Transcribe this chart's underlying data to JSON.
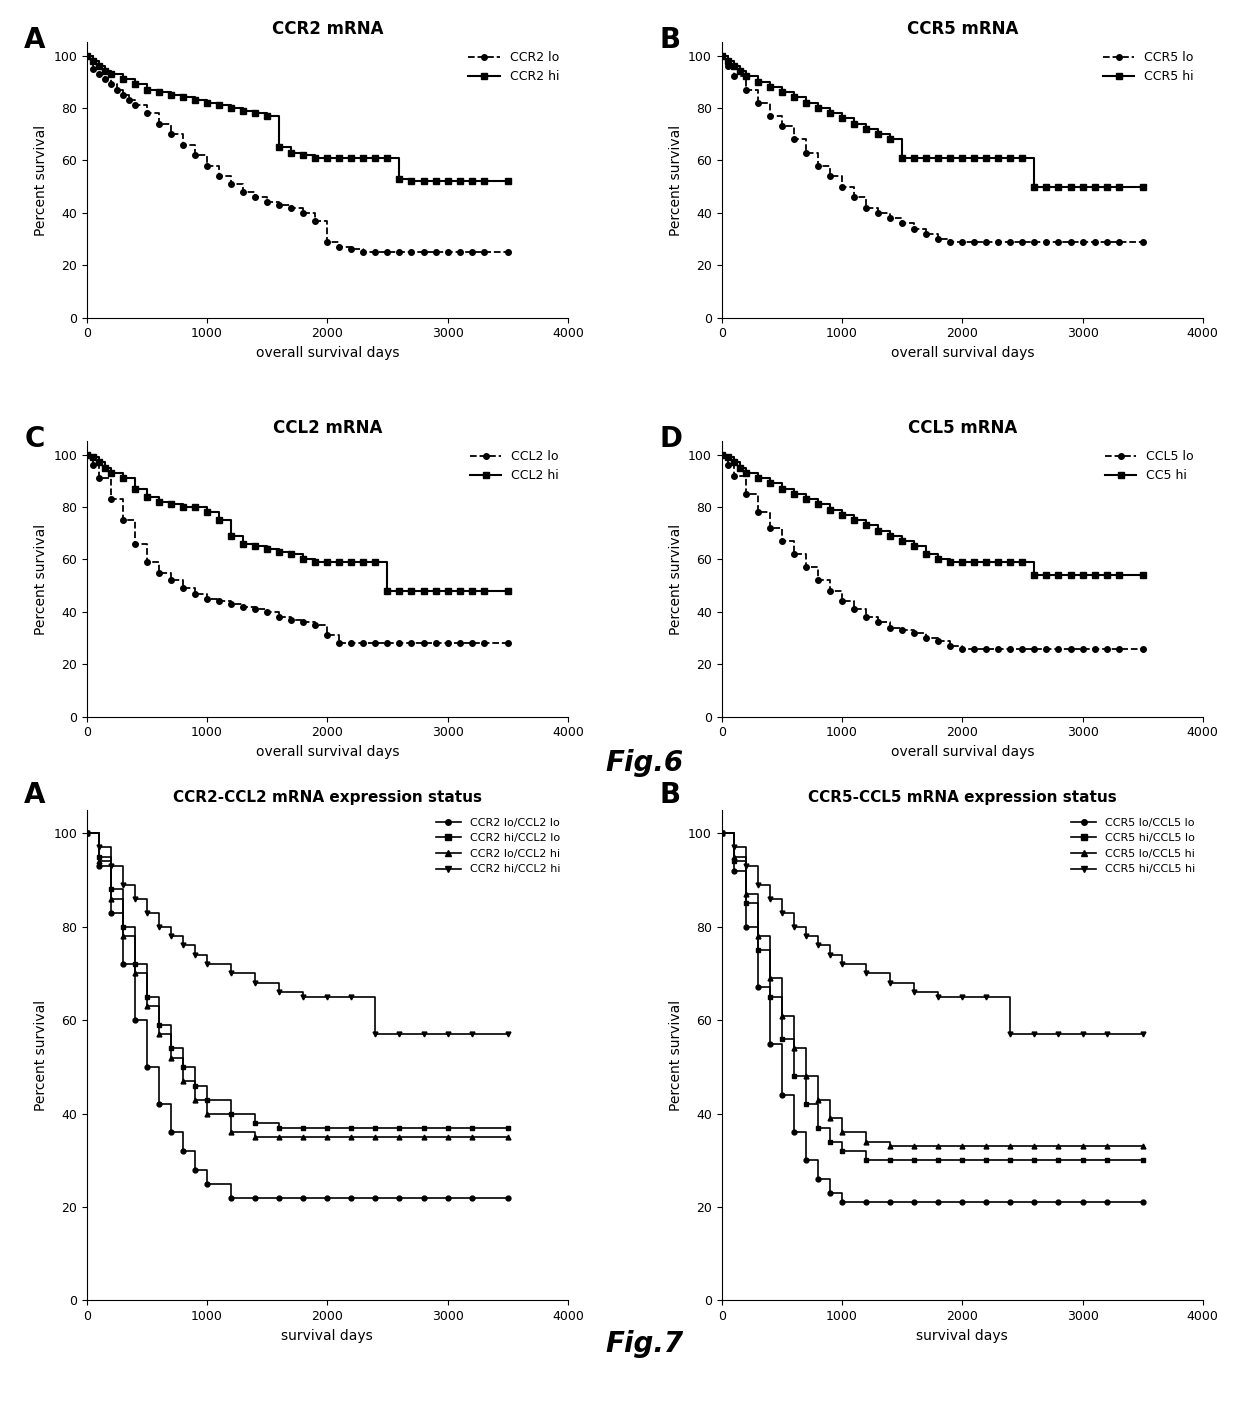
{
  "fig6_title": "Fig.6",
  "fig7_title": "Fig.7",
  "panels": {
    "A": {
      "title": "CCR2 mRNA",
      "label": "A",
      "xlabel": "overall survival days",
      "ylabel": "Percent survival",
      "xlim": [
        0,
        4000
      ],
      "ylim": [
        0,
        105
      ],
      "yticks": [
        0,
        20,
        40,
        60,
        80,
        100
      ],
      "xticks": [
        0,
        1000,
        2000,
        3000,
        4000
      ],
      "lo_label": "CCR2 lo",
      "hi_label": "CCR2 hi",
      "lo_x": [
        0,
        50,
        100,
        150,
        200,
        250,
        300,
        350,
        400,
        500,
        600,
        700,
        800,
        900,
        1000,
        1100,
        1200,
        1300,
        1400,
        1500,
        1600,
        1700,
        1800,
        1900,
        2000,
        2100,
        2200,
        2300,
        2400,
        2500,
        2600,
        2700,
        2800,
        2900,
        3000,
        3100,
        3200,
        3300,
        3500
      ],
      "lo_y": [
        100,
        95,
        93,
        91,
        89,
        87,
        85,
        83,
        81,
        78,
        74,
        70,
        66,
        62,
        58,
        54,
        51,
        48,
        46,
        44,
        43,
        42,
        40,
        37,
        29,
        27,
        26,
        25,
        25,
        25,
        25,
        25,
        25,
        25,
        25,
        25,
        25,
        25,
        25
      ],
      "hi_x": [
        0,
        50,
        100,
        150,
        200,
        300,
        400,
        500,
        600,
        700,
        800,
        900,
        1000,
        1100,
        1200,
        1300,
        1400,
        1500,
        1600,
        1700,
        1800,
        1900,
        2000,
        2100,
        2200,
        2300,
        2400,
        2500,
        2600,
        2700,
        2800,
        2900,
        3000,
        3100,
        3200,
        3300,
        3500
      ],
      "hi_y": [
        100,
        98,
        96,
        94,
        93,
        91,
        89,
        87,
        86,
        85,
        84,
        83,
        82,
        81,
        80,
        79,
        78,
        77,
        65,
        63,
        62,
        61,
        61,
        61,
        61,
        61,
        61,
        61,
        53,
        52,
        52,
        52,
        52,
        52,
        52,
        52,
        52
      ]
    },
    "B": {
      "title": "CCR5 mRNA",
      "label": "B",
      "xlabel": "overall survival days",
      "ylabel": "Percent survival",
      "xlim": [
        0,
        4000
      ],
      "ylim": [
        0,
        105
      ],
      "yticks": [
        0,
        20,
        40,
        60,
        80,
        100
      ],
      "xticks": [
        0,
        1000,
        2000,
        3000,
        4000
      ],
      "lo_label": "CCR5 lo",
      "hi_label": "CCR5 hi",
      "lo_x": [
        0,
        50,
        100,
        200,
        300,
        400,
        500,
        600,
        700,
        800,
        900,
        1000,
        1100,
        1200,
        1300,
        1400,
        1500,
        1600,
        1700,
        1800,
        1900,
        2000,
        2100,
        2200,
        2300,
        2400,
        2500,
        2600,
        2700,
        2800,
        2900,
        3000,
        3100,
        3200,
        3300,
        3500
      ],
      "lo_y": [
        100,
        96,
        92,
        87,
        82,
        77,
        73,
        68,
        63,
        58,
        54,
        50,
        46,
        42,
        40,
        38,
        36,
        34,
        32,
        30,
        29,
        29,
        29,
        29,
        29,
        29,
        29,
        29,
        29,
        29,
        29,
        29,
        29,
        29,
        29,
        29
      ],
      "hi_x": [
        0,
        50,
        100,
        150,
        200,
        300,
        400,
        500,
        600,
        700,
        800,
        900,
        1000,
        1100,
        1200,
        1300,
        1400,
        1500,
        1600,
        1700,
        1800,
        1900,
        2000,
        2100,
        2200,
        2300,
        2400,
        2500,
        2600,
        2700,
        2800,
        2900,
        3000,
        3100,
        3200,
        3300,
        3500
      ],
      "hi_y": [
        100,
        98,
        96,
        94,
        92,
        90,
        88,
        86,
        84,
        82,
        80,
        78,
        76,
        74,
        72,
        70,
        68,
        61,
        61,
        61,
        61,
        61,
        61,
        61,
        61,
        61,
        61,
        61,
        50,
        50,
        50,
        50,
        50,
        50,
        50,
        50,
        50
      ]
    },
    "C": {
      "title": "CCL2 mRNA",
      "label": "C",
      "xlabel": "overall survival days",
      "ylabel": "Percent survival",
      "xlim": [
        0,
        4000
      ],
      "ylim": [
        0,
        105
      ],
      "yticks": [
        0,
        20,
        40,
        60,
        80,
        100
      ],
      "xticks": [
        0,
        1000,
        2000,
        3000,
        4000
      ],
      "lo_label": "CCL2 lo",
      "hi_label": "CCL2 hi",
      "lo_x": [
        0,
        50,
        100,
        200,
        300,
        400,
        500,
        600,
        700,
        800,
        900,
        1000,
        1100,
        1200,
        1300,
        1400,
        1500,
        1600,
        1700,
        1800,
        1900,
        2000,
        2100,
        2200,
        2300,
        2400,
        2500,
        2600,
        2700,
        2800,
        2900,
        3000,
        3100,
        3200,
        3300,
        3500
      ],
      "lo_y": [
        100,
        96,
        91,
        83,
        75,
        66,
        59,
        55,
        52,
        49,
        47,
        45,
        44,
        43,
        42,
        41,
        40,
        38,
        37,
        36,
        35,
        31,
        28,
        28,
        28,
        28,
        28,
        28,
        28,
        28,
        28,
        28,
        28,
        28,
        28,
        28
      ],
      "hi_x": [
        0,
        50,
        100,
        150,
        200,
        300,
        400,
        500,
        600,
        700,
        800,
        900,
        1000,
        1100,
        1200,
        1300,
        1400,
        1500,
        1600,
        1700,
        1800,
        1900,
        2000,
        2100,
        2200,
        2300,
        2400,
        2500,
        2600,
        2700,
        2800,
        2900,
        3000,
        3100,
        3200,
        3300,
        3500
      ],
      "hi_y": [
        100,
        99,
        97,
        95,
        93,
        91,
        87,
        84,
        82,
        81,
        80,
        80,
        78,
        75,
        69,
        66,
        65,
        64,
        63,
        62,
        60,
        59,
        59,
        59,
        59,
        59,
        59,
        48,
        48,
        48,
        48,
        48,
        48,
        48,
        48,
        48,
        48
      ]
    },
    "D": {
      "title": "CCL5 mRNA",
      "label": "D",
      "xlabel": "overall survival days",
      "ylabel": "Percent survival",
      "xlim": [
        0,
        4000
      ],
      "ylim": [
        0,
        105
      ],
      "yticks": [
        0,
        20,
        40,
        60,
        80,
        100
      ],
      "xticks": [
        0,
        1000,
        2000,
        3000,
        4000
      ],
      "lo_label": "CCL5 lo",
      "hi_label": "CC5 hi",
      "lo_x": [
        0,
        50,
        100,
        200,
        300,
        400,
        500,
        600,
        700,
        800,
        900,
        1000,
        1100,
        1200,
        1300,
        1400,
        1500,
        1600,
        1700,
        1800,
        1900,
        2000,
        2100,
        2200,
        2300,
        2400,
        2500,
        2600,
        2700,
        2800,
        2900,
        3000,
        3100,
        3200,
        3300,
        3500
      ],
      "lo_y": [
        100,
        96,
        92,
        85,
        78,
        72,
        67,
        62,
        57,
        52,
        48,
        44,
        41,
        38,
        36,
        34,
        33,
        32,
        30,
        29,
        27,
        26,
        26,
        26,
        26,
        26,
        26,
        26,
        26,
        26,
        26,
        26,
        26,
        26,
        26,
        26
      ],
      "hi_x": [
        0,
        50,
        100,
        150,
        200,
        300,
        400,
        500,
        600,
        700,
        800,
        900,
        1000,
        1100,
        1200,
        1300,
        1400,
        1500,
        1600,
        1700,
        1800,
        1900,
        2000,
        2100,
        2200,
        2300,
        2400,
        2500,
        2600,
        2700,
        2800,
        2900,
        3000,
        3100,
        3200,
        3300,
        3500
      ],
      "hi_y": [
        100,
        99,
        97,
        95,
        93,
        91,
        89,
        87,
        85,
        83,
        81,
        79,
        77,
        75,
        73,
        71,
        69,
        67,
        65,
        62,
        60,
        59,
        59,
        59,
        59,
        59,
        59,
        59,
        54,
        54,
        54,
        54,
        54,
        54,
        54,
        54,
        54
      ]
    }
  },
  "fig7": {
    "A": {
      "title": "CCR2-CCL2 mRNA expression status",
      "label": "A",
      "xlabel": "survival days",
      "ylabel": "Percent survival",
      "xlim": [
        0,
        4000
      ],
      "ylim": [
        0,
        105
      ],
      "yticks": [
        0,
        20,
        40,
        60,
        80,
        100
      ],
      "xticks": [
        0,
        1000,
        2000,
        3000,
        4000
      ],
      "series": [
        {
          "label": "CCR2 lo/CCL2 lo",
          "marker": "o",
          "x": [
            0,
            100,
            200,
            300,
            400,
            500,
            600,
            700,
            800,
            900,
            1000,
            1200,
            1400,
            1600,
            1800,
            2000,
            2200,
            2400,
            2600,
            2800,
            3000,
            3200,
            3500
          ],
          "y": [
            100,
            93,
            83,
            72,
            60,
            50,
            42,
            36,
            32,
            28,
            25,
            22,
            22,
            22,
            22,
            22,
            22,
            22,
            22,
            22,
            22,
            22,
            22
          ]
        },
        {
          "label": "CCR2 hi/CCL2 lo",
          "marker": "s",
          "x": [
            0,
            100,
            200,
            300,
            400,
            500,
            600,
            700,
            800,
            900,
            1000,
            1200,
            1400,
            1600,
            1800,
            2000,
            2200,
            2400,
            2600,
            2800,
            3000,
            3200,
            3500
          ],
          "y": [
            100,
            95,
            88,
            80,
            72,
            65,
            59,
            54,
            50,
            46,
            43,
            40,
            38,
            37,
            37,
            37,
            37,
            37,
            37,
            37,
            37,
            37,
            37
          ]
        },
        {
          "label": "CCR2 lo/CCL2 hi",
          "marker": "^",
          "x": [
            0,
            100,
            200,
            300,
            400,
            500,
            600,
            700,
            800,
            900,
            1000,
            1200,
            1400,
            1600,
            1800,
            2000,
            2200,
            2400,
            2600,
            2800,
            3000,
            3200,
            3500
          ],
          "y": [
            100,
            94,
            86,
            78,
            70,
            63,
            57,
            52,
            47,
            43,
            40,
            36,
            35,
            35,
            35,
            35,
            35,
            35,
            35,
            35,
            35,
            35,
            35
          ]
        },
        {
          "label": "CCR2 hi/CCL2 hi",
          "marker": "v",
          "x": [
            0,
            100,
            200,
            300,
            400,
            500,
            600,
            700,
            800,
            900,
            1000,
            1200,
            1400,
            1600,
            1800,
            2000,
            2200,
            2400,
            2600,
            2800,
            3000,
            3200,
            3500
          ],
          "y": [
            100,
            97,
            93,
            89,
            86,
            83,
            80,
            78,
            76,
            74,
            72,
            70,
            68,
            66,
            65,
            65,
            65,
            57,
            57,
            57,
            57,
            57,
            57
          ]
        }
      ]
    },
    "B": {
      "title": "CCR5-CCL5 mRNA expression status",
      "label": "B",
      "xlabel": "survival days",
      "ylabel": "Percent survival",
      "xlim": [
        0,
        4000
      ],
      "ylim": [
        0,
        105
      ],
      "yticks": [
        0,
        20,
        40,
        60,
        80,
        100
      ],
      "xticks": [
        0,
        1000,
        2000,
        3000,
        4000
      ],
      "series": [
        {
          "label": "CCR5 lo/CCL5 lo",
          "marker": "o",
          "x": [
            0,
            100,
            200,
            300,
            400,
            500,
            600,
            700,
            800,
            900,
            1000,
            1200,
            1400,
            1600,
            1800,
            2000,
            2200,
            2400,
            2600,
            2800,
            3000,
            3200,
            3500
          ],
          "y": [
            100,
            92,
            80,
            67,
            55,
            44,
            36,
            30,
            26,
            23,
            21,
            21,
            21,
            21,
            21,
            21,
            21,
            21,
            21,
            21,
            21,
            21,
            21
          ]
        },
        {
          "label": "CCR5 hi/CCL5 lo",
          "marker": "s",
          "x": [
            0,
            100,
            200,
            300,
            400,
            500,
            600,
            700,
            800,
            900,
            1000,
            1200,
            1400,
            1600,
            1800,
            2000,
            2200,
            2400,
            2600,
            2800,
            3000,
            3200,
            3500
          ],
          "y": [
            100,
            94,
            85,
            75,
            65,
            56,
            48,
            42,
            37,
            34,
            32,
            30,
            30,
            30,
            30,
            30,
            30,
            30,
            30,
            30,
            30,
            30,
            30
          ]
        },
        {
          "label": "CCR5 lo/CCL5 hi",
          "marker": "^",
          "x": [
            0,
            100,
            200,
            300,
            400,
            500,
            600,
            700,
            800,
            900,
            1000,
            1200,
            1400,
            1600,
            1800,
            2000,
            2200,
            2400,
            2600,
            2800,
            3000,
            3200,
            3500
          ],
          "y": [
            100,
            95,
            87,
            78,
            69,
            61,
            54,
            48,
            43,
            39,
            36,
            34,
            33,
            33,
            33,
            33,
            33,
            33,
            33,
            33,
            33,
            33,
            33
          ]
        },
        {
          "label": "CCR5 hi/CCL5 hi",
          "marker": "v",
          "x": [
            0,
            100,
            200,
            300,
            400,
            500,
            600,
            700,
            800,
            900,
            1000,
            1200,
            1400,
            1600,
            1800,
            2000,
            2200,
            2400,
            2600,
            2800,
            3000,
            3200,
            3500
          ],
          "y": [
            100,
            97,
            93,
            89,
            86,
            83,
            80,
            78,
            76,
            74,
            72,
            70,
            68,
            66,
            65,
            65,
            65,
            57,
            57,
            57,
            57,
            57,
            57
          ]
        }
      ]
    }
  }
}
